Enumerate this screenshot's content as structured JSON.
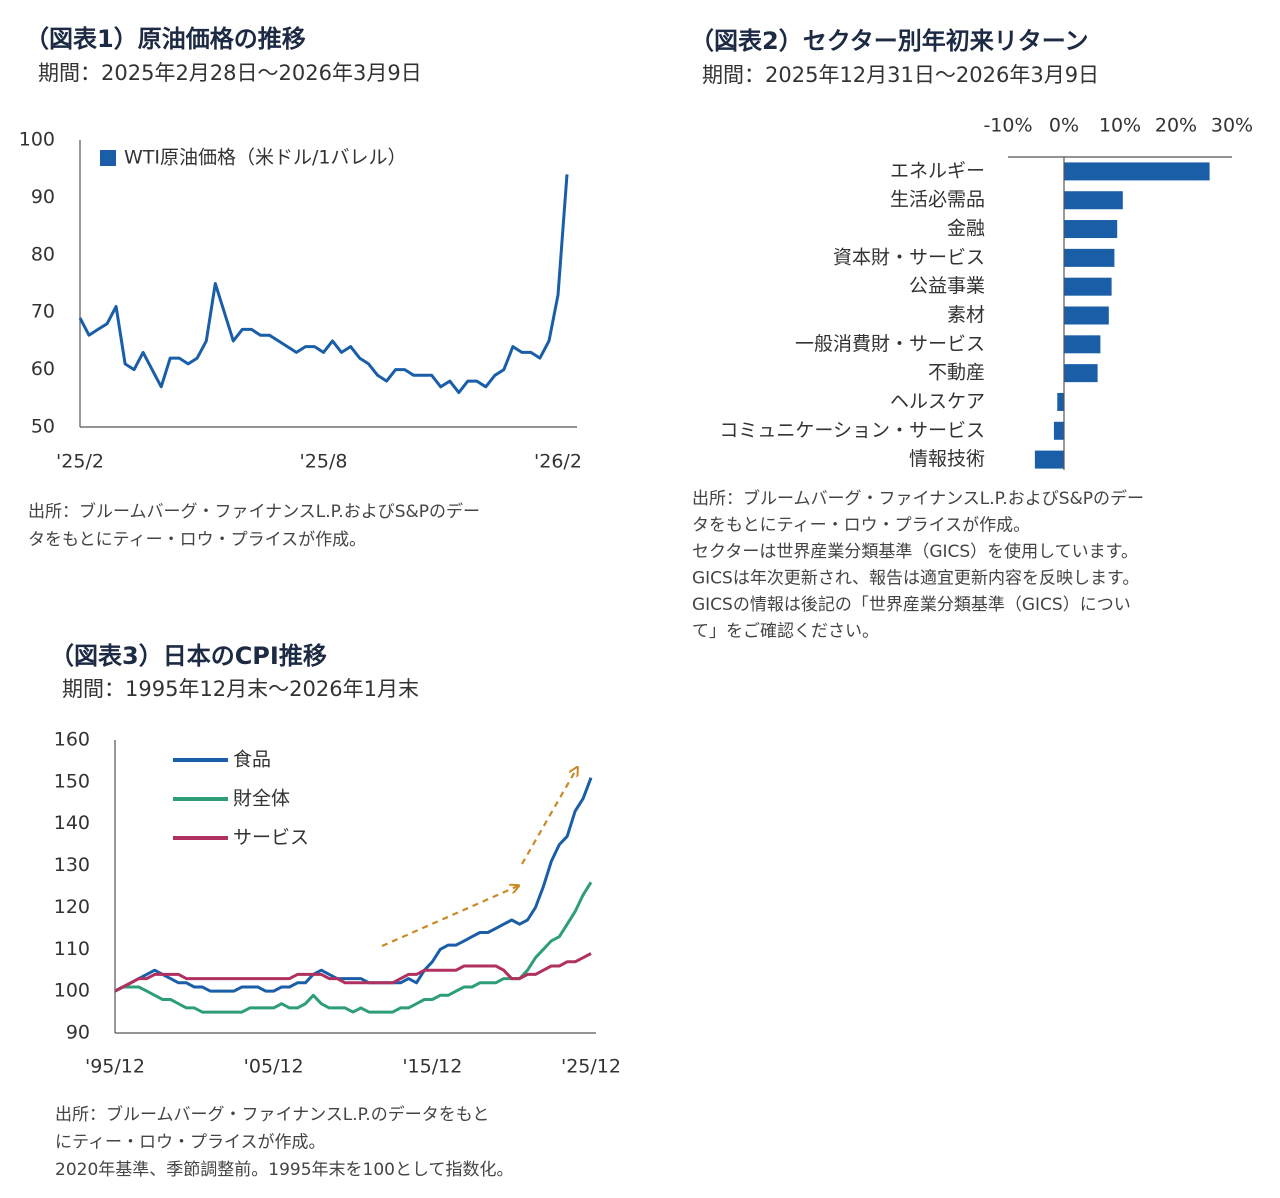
{
  "chart_data": [
    {
      "type": "line",
      "title": "（図表1）原油価格の推移",
      "subtitle": "期間：2025年2月28日～2026年3月9日",
      "categories": [
        "'25/2",
        null,
        null,
        null,
        null,
        null,
        null,
        null,
        null,
        null,
        null,
        null,
        null,
        null,
        null,
        null,
        null,
        null,
        null,
        null,
        null,
        null,
        null,
        null,
        null,
        null,
        null,
        "'25/8",
        null,
        null,
        null,
        null,
        null,
        null,
        null,
        null,
        null,
        null,
        null,
        null,
        null,
        null,
        null,
        null,
        null,
        null,
        null,
        null,
        null,
        null,
        null,
        null,
        null,
        "'26/2",
        null
      ],
      "series": [
        {
          "name": "WTI原油価格（米ドル/1バレル）",
          "color": "#1a5ea8",
          "values": [
            69,
            66,
            67,
            68,
            71,
            61,
            60,
            63,
            60,
            57,
            62,
            62,
            61,
            62,
            65,
            75,
            70,
            65,
            67,
            67,
            66,
            66,
            65,
            64,
            63,
            64,
            64,
            63,
            65,
            63,
            64,
            62,
            61,
            59,
            58,
            60,
            60,
            59,
            59,
            59,
            57,
            58,
            56,
            58,
            58,
            57,
            59,
            60,
            64,
            63,
            63,
            62,
            65,
            73,
            94
          ]
        }
      ],
      "ylim": [
        50,
        100
      ],
      "yticks": [
        50,
        60,
        70,
        80,
        90,
        100
      ],
      "grid": false,
      "notes": [
        "出所：ブルームバーグ・ファイナンスL.P.およびS&Pのデー",
        "タをもとにティー・ロウ・プライスが作成。"
      ]
    },
    {
      "type": "bar",
      "title": "（図表2）セクター別年初来リターン",
      "subtitle": "期間：2025年12月31日～2026年3月9日",
      "categories": [
        "エネルギー",
        "生活必需品",
        "金融",
        "資本財・サービス",
        "公益事業",
        "素材",
        "一般消費財・サービス",
        "不動産",
        "ヘルスケア",
        "コミュニケーション・サービス",
        "情報技術"
      ],
      "values": [
        26,
        10.5,
        9.5,
        9,
        8.5,
        8,
        6.5,
        6,
        -1.2,
        -1.8,
        -5.2
      ],
      "color": "#1a5ea8",
      "xlim": [
        -10,
        30
      ],
      "xticks": [
        {
          "value": -10,
          "label": "-10%"
        },
        {
          "value": 0,
          "label": "0%"
        },
        {
          "value": 10,
          "label": "10%"
        },
        {
          "value": 20,
          "label": "20%"
        },
        {
          "value": 30,
          "label": "30%"
        }
      ],
      "notes": [
        "出所：ブルームバーグ・ファイナンスL.P.およびS&Pのデー",
        "タをもとにティー・ロウ・プライスが作成。",
        "セクターは世界産業分類基準（GICS）を使用しています。",
        "GICSは年次更新され、報告は適宜更新内容を反映します。",
        "GICSの情報は後記の「世界産業分類基準（GICS）につい",
        "て」をご確認ください。"
      ]
    },
    {
      "type": "line",
      "title": "（図表3）日本のCPI推移",
      "subtitle": "期間：1995年12月末～2026年1月末",
      "categories": [
        "'95/12",
        null,
        null,
        null,
        null,
        null,
        null,
        null,
        null,
        null,
        null,
        null,
        null,
        null,
        null,
        null,
        null,
        null,
        null,
        null,
        "'05/12",
        null,
        null,
        null,
        null,
        null,
        null,
        null,
        null,
        null,
        null,
        null,
        null,
        null,
        null,
        null,
        null,
        null,
        null,
        null,
        "'15/12",
        null,
        null,
        null,
        null,
        null,
        null,
        null,
        null,
        null,
        null,
        null,
        null,
        null,
        null,
        null,
        null,
        null,
        null,
        null,
        "'25/12"
      ],
      "series": [
        {
          "name": "食品",
          "color": "#1a5ea8",
          "values": [
            100,
            101,
            102,
            103,
            104,
            105,
            104,
            103,
            102,
            102,
            101,
            101,
            100,
            100,
            100,
            100,
            101,
            101,
            101,
            100,
            100,
            101,
            101,
            102,
            102,
            104,
            105,
            104,
            103,
            103,
            103,
            103,
            102,
            102,
            102,
            102,
            102,
            103,
            102,
            105,
            107,
            110,
            111,
            111,
            112,
            113,
            114,
            114,
            115,
            116,
            117,
            116,
            117,
            120,
            125,
            131,
            135,
            137,
            143,
            146,
            151
          ]
        },
        {
          "name": "財全体",
          "color": "#2e9e77",
          "values": [
            100,
            101,
            101,
            101,
            100,
            99,
            98,
            98,
            97,
            96,
            96,
            95,
            95,
            95,
            95,
            95,
            95,
            96,
            96,
            96,
            96,
            97,
            96,
            96,
            97,
            99,
            97,
            96,
            96,
            96,
            95,
            96,
            95,
            95,
            95,
            95,
            96,
            96,
            97,
            98,
            98,
            99,
            99,
            100,
            101,
            101,
            102,
            102,
            102,
            103,
            103,
            103,
            105,
            108,
            110,
            112,
            113,
            116,
            119,
            123,
            126
          ]
        },
        {
          "name": "サービス",
          "color": "#b03060",
          "values": [
            100,
            101,
            102,
            103,
            103,
            104,
            104,
            104,
            104,
            103,
            103,
            103,
            103,
            103,
            103,
            103,
            103,
            103,
            103,
            103,
            103,
            103,
            103,
            104,
            104,
            104,
            104,
            103,
            103,
            102,
            102,
            102,
            102,
            102,
            102,
            102,
            103,
            104,
            104,
            105,
            105,
            105,
            105,
            105,
            106,
            106,
            106,
            106,
            106,
            105,
            103,
            103,
            104,
            104,
            105,
            106,
            106,
            107,
            107,
            108,
            109
          ]
        }
      ],
      "ylim": [
        90,
        160
      ],
      "yticks": [
        90,
        100,
        110,
        120,
        130,
        140,
        150,
        160
      ],
      "grid": false,
      "notes": [
        "出所：ブルームバーグ・ファイナンスL.P.のデータをもと",
        "にティー・ロウ・プライスが作成。",
        "2020年基準、季節調整前。1995年末を100として指数化。"
      ]
    }
  ]
}
